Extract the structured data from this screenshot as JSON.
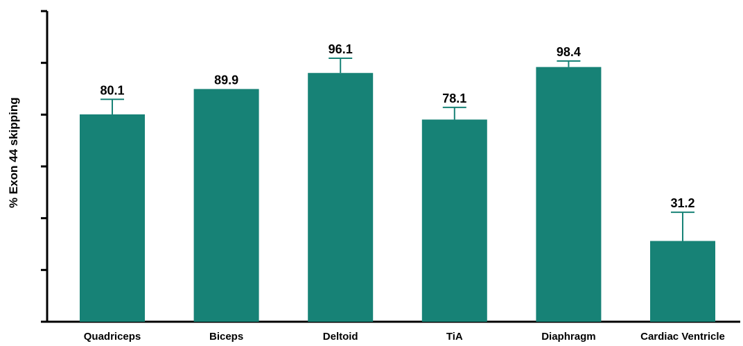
{
  "chart_data": {
    "type": "bar",
    "title": "",
    "xlabel": "",
    "ylabel": "% Exon 44 skipping",
    "ylim": [
      0,
      120
    ],
    "y_ticks": [
      0,
      20,
      40,
      60,
      80,
      100,
      120
    ],
    "y_tick_labels_shown": false,
    "grid": false,
    "categories": [
      "Quadriceps",
      "Biceps",
      "Deltoid",
      "TiA",
      "Diaphragm",
      "Cardiac Ventricle"
    ],
    "values": [
      80.1,
      89.9,
      96.1,
      78.1,
      98.4,
      31.2
    ],
    "value_labels": [
      "80.1",
      "89.9",
      "96.1",
      "78.1",
      "98.4",
      "31.2"
    ],
    "error_upper": [
      5.8,
      0,
      5.7,
      4.7,
      2.3,
      11.1
    ],
    "bar_color": "#178276"
  }
}
